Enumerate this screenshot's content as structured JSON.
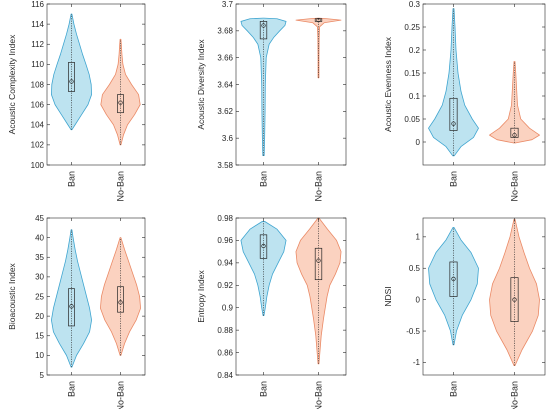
{
  "colors": {
    "ban_fill": "#bde3f0",
    "ban_edge": "#3fa5d0",
    "noban_fill": "#fbd2c0",
    "noban_edge": "#ea8a66",
    "axis": "#262626",
    "box": "#262626"
  },
  "chart_data": [
    {
      "type": "violin",
      "ylabel": "Acoustic Complexity Index",
      "ylim": [
        100,
        116
      ],
      "yticks": [
        100,
        102,
        104,
        106,
        108,
        110,
        112,
        114,
        116
      ],
      "ytick_labels": [
        "100",
        "102",
        "104",
        "106",
        "108",
        "110",
        "112",
        "114",
        "116"
      ],
      "categories": [
        "Ban",
        "No-Ban"
      ],
      "series": [
        {
          "name": "Ban",
          "whisker": [
            103.5,
            115
          ],
          "q1": 107.3,
          "median": 108.3,
          "q3": 110.2,
          "density": [
            [
              103.5,
              0.02
            ],
            [
              104,
              0.18
            ],
            [
              105,
              0.5
            ],
            [
              106,
              0.82
            ],
            [
              107,
              1.0
            ],
            [
              108,
              0.98
            ],
            [
              109,
              0.88
            ],
            [
              110,
              0.72
            ],
            [
              111,
              0.55
            ],
            [
              112,
              0.4
            ],
            [
              113,
              0.25
            ],
            [
              114,
              0.12
            ],
            [
              115,
              0.02
            ]
          ]
        },
        {
          "name": "No-Ban",
          "whisker": [
            102,
            112.5
          ],
          "q1": 105.2,
          "median": 106.2,
          "q3": 107,
          "density": [
            [
              102,
              0.02
            ],
            [
              103,
              0.15
            ],
            [
              104,
              0.35
            ],
            [
              105,
              0.7
            ],
            [
              106,
              0.98
            ],
            [
              107,
              0.9
            ],
            [
              108,
              0.55
            ],
            [
              109,
              0.25
            ],
            [
              110,
              0.12
            ],
            [
              111,
              0.07
            ],
            [
              112,
              0.04
            ],
            [
              112.5,
              0.02
            ]
          ]
        }
      ]
    },
    {
      "type": "violin",
      "ylabel": "Acoustic Diversity Index",
      "ylim": [
        3.58,
        3.7
      ],
      "yticks": [
        3.58,
        3.6,
        3.62,
        3.64,
        3.66,
        3.68,
        3.7
      ],
      "ytick_labels": [
        "3.58",
        "3.6",
        "3.62",
        "3.64",
        "3.66",
        "3.68",
        "3.7"
      ],
      "categories": [
        "Ban",
        "No-Ban"
      ],
      "series": [
        {
          "name": "Ban",
          "whisker": [
            3.587,
            3.689
          ],
          "q1": 3.674,
          "median": 3.684,
          "q3": 3.687,
          "density": [
            [
              3.587,
              0.03
            ],
            [
              3.6,
              0.05
            ],
            [
              3.62,
              0.07
            ],
            [
              3.64,
              0.08
            ],
            [
              3.65,
              0.1
            ],
            [
              3.66,
              0.12
            ],
            [
              3.67,
              0.25
            ],
            [
              3.675,
              0.45
            ],
            [
              3.68,
              0.72
            ],
            [
              3.684,
              0.95
            ],
            [
              3.687,
              1.0
            ],
            [
              3.689,
              0.6
            ],
            [
              3.6895,
              0.02
            ]
          ]
        },
        {
          "name": "No-Ban",
          "whisker": [
            3.645,
            3.689
          ],
          "q1": 3.687,
          "median": 3.688,
          "q3": 3.689,
          "density": [
            [
              3.645,
              0.02
            ],
            [
              3.66,
              0.02
            ],
            [
              3.675,
              0.03
            ],
            [
              3.683,
              0.05
            ],
            [
              3.686,
              0.25
            ],
            [
              3.688,
              1.0
            ],
            [
              3.689,
              0.4
            ],
            [
              3.6895,
              0.02
            ]
          ]
        }
      ]
    },
    {
      "type": "violin",
      "ylabel": "Acoustic Evenness Index",
      "ylim": [
        -0.05,
        0.3
      ],
      "yticks": [
        0,
        0.05,
        0.1,
        0.15,
        0.2,
        0.25,
        0.3
      ],
      "ytick_labels": [
        "0",
        "0.05",
        "0.1",
        "0.15",
        "0.2",
        "0.25",
        "0.3"
      ],
      "categories": [
        "Ban",
        "No-Ban"
      ],
      "series": [
        {
          "name": "Ban",
          "whisker": [
            -0.03,
            0.29
          ],
          "q1": 0.025,
          "median": 0.04,
          "q3": 0.095,
          "density": [
            [
              -0.03,
              0.03
            ],
            [
              -0.01,
              0.3
            ],
            [
              0.01,
              0.8
            ],
            [
              0.03,
              1.0
            ],
            [
              0.05,
              0.75
            ],
            [
              0.08,
              0.45
            ],
            [
              0.11,
              0.3
            ],
            [
              0.15,
              0.18
            ],
            [
              0.2,
              0.1
            ],
            [
              0.25,
              0.06
            ],
            [
              0.29,
              0.02
            ]
          ]
        },
        {
          "name": "No-Ban",
          "whisker": [
            -0.002,
            0.175
          ],
          "q1": 0.01,
          "median": 0.015,
          "q3": 0.03,
          "density": [
            [
              -0.002,
              0.05
            ],
            [
              0.005,
              0.7
            ],
            [
              0.015,
              1.0
            ],
            [
              0.03,
              0.6
            ],
            [
              0.05,
              0.25
            ],
            [
              0.08,
              0.12
            ],
            [
              0.12,
              0.08
            ],
            [
              0.15,
              0.05
            ],
            [
              0.175,
              0.02
            ]
          ]
        }
      ]
    },
    {
      "type": "violin",
      "ylabel": "Bioacoustic Index",
      "ylim": [
        5,
        45
      ],
      "yticks": [
        5,
        10,
        15,
        20,
        25,
        30,
        35,
        40,
        45
      ],
      "ytick_labels": [
        "5",
        "10",
        "15",
        "20",
        "25",
        "30",
        "35",
        "40",
        "45"
      ],
      "categories": [
        "Ban",
        "No-Ban"
      ],
      "series": [
        {
          "name": "Ban",
          "whisker": [
            7,
            42
          ],
          "q1": 17.5,
          "median": 22.5,
          "q3": 27,
          "density": [
            [
              7,
              0.02
            ],
            [
              10,
              0.25
            ],
            [
              13,
              0.6
            ],
            [
              16,
              0.9
            ],
            [
              19,
              1.0
            ],
            [
              22,
              0.9
            ],
            [
              25,
              0.75
            ],
            [
              28,
              0.6
            ],
            [
              31,
              0.45
            ],
            [
              34,
              0.3
            ],
            [
              37,
              0.18
            ],
            [
              40,
              0.08
            ],
            [
              42,
              0.02
            ]
          ]
        },
        {
          "name": "No-Ban",
          "whisker": [
            10,
            40
          ],
          "q1": 21,
          "median": 23.5,
          "q3": 27.5,
          "density": [
            [
              10,
              0.02
            ],
            [
              13,
              0.2
            ],
            [
              16,
              0.45
            ],
            [
              19,
              0.78
            ],
            [
              22,
              1.0
            ],
            [
              25,
              0.95
            ],
            [
              28,
              0.8
            ],
            [
              31,
              0.6
            ],
            [
              34,
              0.4
            ],
            [
              37,
              0.2
            ],
            [
              40,
              0.02
            ]
          ]
        }
      ]
    },
    {
      "type": "violin",
      "ylabel": "Entropy Index",
      "ylim": [
        0.84,
        0.98
      ],
      "yticks": [
        0.84,
        0.86,
        0.88,
        0.9,
        0.92,
        0.94,
        0.96,
        0.98
      ],
      "ytick_labels": [
        "0.84",
        "0.86",
        "0.88",
        "0.9",
        "0.92",
        "0.94",
        "0.96",
        "0.98"
      ],
      "categories": [
        "Ban",
        "No-Ban"
      ],
      "series": [
        {
          "name": "Ban",
          "whisker": [
            0.893,
            0.977
          ],
          "q1": 0.944,
          "median": 0.955,
          "q3": 0.965,
          "density": [
            [
              0.893,
              0.02
            ],
            [
              0.9,
              0.08
            ],
            [
              0.91,
              0.15
            ],
            [
              0.92,
              0.25
            ],
            [
              0.93,
              0.4
            ],
            [
              0.94,
              0.65
            ],
            [
              0.95,
              0.9
            ],
            [
              0.96,
              1.0
            ],
            [
              0.97,
              0.6
            ],
            [
              0.977,
              0.05
            ]
          ]
        },
        {
          "name": "No-Ban",
          "whisker": [
            0.85,
            0.98
          ],
          "q1": 0.925,
          "median": 0.942,
          "q3": 0.953,
          "density": [
            [
              0.85,
              0.02
            ],
            [
              0.86,
              0.06
            ],
            [
              0.875,
              0.12
            ],
            [
              0.89,
              0.22
            ],
            [
              0.9,
              0.3
            ],
            [
              0.91,
              0.38
            ],
            [
              0.92,
              0.5
            ],
            [
              0.93,
              0.75
            ],
            [
              0.94,
              0.95
            ],
            [
              0.95,
              1.0
            ],
            [
              0.96,
              0.8
            ],
            [
              0.97,
              0.4
            ],
            [
              0.98,
              0.02
            ]
          ]
        }
      ]
    },
    {
      "type": "violin",
      "ylabel": "NDSI",
      "ylim": [
        -1.2,
        1.3
      ],
      "yticks": [
        -1,
        -0.5,
        0,
        0.5,
        1
      ],
      "ytick_labels": [
        "-1",
        "-0.5",
        "0",
        "0.5",
        "1"
      ],
      "categories": [
        "Ban",
        "No-Ban"
      ],
      "series": [
        {
          "name": "Ban",
          "whisker": [
            -0.72,
            1.15
          ],
          "q1": 0.05,
          "median": 0.33,
          "q3": 0.6,
          "density": [
            [
              -0.72,
              0.02
            ],
            [
              -0.5,
              0.12
            ],
            [
              -0.25,
              0.35
            ],
            [
              0,
              0.7
            ],
            [
              0.25,
              0.95
            ],
            [
              0.5,
              1.0
            ],
            [
              0.75,
              0.7
            ],
            [
              0.95,
              0.3
            ],
            [
              1.15,
              0.02
            ]
          ]
        },
        {
          "name": "No-Ban",
          "whisker": [
            -1.05,
            1.28
          ],
          "q1": -0.35,
          "median": 0.0,
          "q3": 0.35,
          "density": [
            [
              -1.05,
              0.02
            ],
            [
              -0.8,
              0.3
            ],
            [
              -0.5,
              0.72
            ],
            [
              -0.25,
              0.95
            ],
            [
              0,
              1.0
            ],
            [
              0.25,
              0.88
            ],
            [
              0.5,
              0.6
            ],
            [
              0.75,
              0.38
            ],
            [
              1.0,
              0.18
            ],
            [
              1.28,
              0.02
            ]
          ]
        }
      ]
    }
  ]
}
